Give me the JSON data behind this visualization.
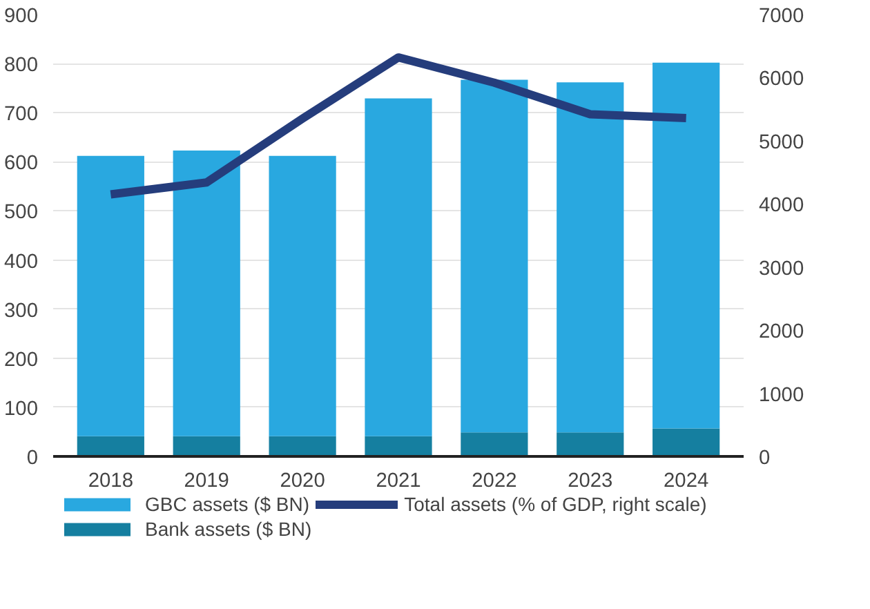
{
  "chart_data": {
    "type": "bar",
    "stacked": true,
    "categories": [
      "2018",
      "2019",
      "2020",
      "2021",
      "2022",
      "2023",
      "2024"
    ],
    "series": [
      {
        "name": "Bank assets ($ BN)",
        "color": "#157fa0",
        "values": [
          41,
          41,
          41,
          41,
          49,
          49,
          57
        ]
      },
      {
        "name": "GBC assets ($ BN)",
        "color": "#29a8e0",
        "values": [
          571,
          582,
          571,
          688,
          718,
          713,
          745
        ]
      },
      {
        "name": "Total assets (% of GDP, right scale)",
        "type": "line",
        "axis": "y2",
        "color": "#253d7c",
        "values": [
          4150,
          4340,
          5350,
          6320,
          5920,
          5420,
          5360
        ]
      }
    ],
    "ylim": [
      0,
      900
    ],
    "yticks": [
      0,
      100,
      200,
      300,
      400,
      500,
      600,
      700,
      800,
      900
    ],
    "y2lim": [
      0,
      7000
    ],
    "y2ticks": [
      0,
      1000,
      2000,
      3000,
      4000,
      5000,
      6000,
      7000
    ],
    "grid": "y",
    "legend": "bottom",
    "line_style": "solid"
  }
}
